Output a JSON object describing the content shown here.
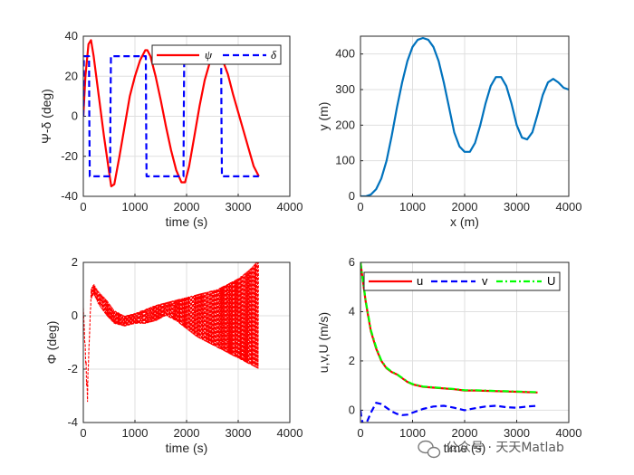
{
  "watermark": {
    "text": "公众号 · 天天Matlab",
    "icon": "wechat-icon"
  },
  "chart_data": [
    {
      "type": "line",
      "panel": "top-left",
      "xlabel": "time (s)",
      "ylabel": "Ψ-δ (deg)",
      "xlim": [
        0,
        4000
      ],
      "ylim": [
        -40,
        40
      ],
      "xticks": [
        "0",
        "1000",
        "2000",
        "3000",
        "4000"
      ],
      "yticks": [
        "40",
        "20",
        "0",
        "-20",
        "-40"
      ],
      "grid": true,
      "legend_position": "top-right",
      "series": [
        {
          "name": "ψ",
          "color": "#ff0000",
          "style": "solid",
          "x": [
            0,
            40,
            100,
            150,
            200,
            300,
            400,
            500,
            540,
            600,
            700,
            800,
            900,
            1000,
            1100,
            1200,
            1240,
            1300,
            1400,
            1500,
            1600,
            1700,
            1800,
            1900,
            1970,
            2050,
            2150,
            2250,
            2350,
            2450,
            2550,
            2650,
            2700,
            2800,
            2900,
            3000,
            3100,
            3200,
            3300,
            3400
          ],
          "y": [
            0,
            20,
            36,
            38,
            30,
            10,
            -10,
            -28,
            -35,
            -34,
            -20,
            -5,
            10,
            20,
            28,
            33,
            33,
            30,
            20,
            8,
            -5,
            -17,
            -27,
            -33,
            -33,
            -25,
            -10,
            5,
            18,
            27,
            31,
            30,
            28,
            21,
            11,
            2,
            -7,
            -16,
            -25,
            -30
          ]
        },
        {
          "name": "δ",
          "color": "#0000ff",
          "style": "dashed",
          "x": [
            0,
            5,
            10,
            20,
            110,
            115,
            125,
            520,
            525,
            535,
            1210,
            1215,
            1225,
            1940,
            1945,
            1955,
            2670,
            2675,
            2685,
            3400
          ],
          "y": [
            0,
            15,
            30,
            30,
            30,
            0,
            -30,
            -30,
            0,
            30,
            30,
            0,
            -30,
            -30,
            0,
            30,
            30,
            0,
            -30,
            -30
          ]
        }
      ]
    },
    {
      "type": "line",
      "panel": "top-right",
      "xlabel": "x (m)",
      "ylabel": "y (m)",
      "xlim": [
        0,
        4000
      ],
      "ylim": [
        0,
        450
      ],
      "xticks": [
        "0",
        "1000",
        "2000",
        "3000",
        "4000"
      ],
      "yticks": [
        "400",
        "300",
        "200",
        "100",
        "0"
      ],
      "grid": true,
      "series": [
        {
          "name": "",
          "color": "#0072bd",
          "style": "solid",
          "x": [
            0,
            100,
            200,
            300,
            400,
            500,
            600,
            700,
            800,
            900,
            1000,
            1100,
            1200,
            1300,
            1400,
            1500,
            1600,
            1700,
            1800,
            1900,
            2000,
            2100,
            2200,
            2300,
            2400,
            2500,
            2600,
            2700,
            2800,
            2900,
            3000,
            3100,
            3200,
            3300,
            3400,
            3500,
            3600,
            3700,
            3800,
            3900,
            4000
          ],
          "y": [
            0,
            0,
            5,
            20,
            50,
            100,
            170,
            250,
            320,
            380,
            420,
            440,
            445,
            440,
            420,
            380,
            320,
            250,
            180,
            140,
            125,
            125,
            150,
            200,
            260,
            310,
            335,
            335,
            310,
            260,
            200,
            165,
            160,
            180,
            230,
            285,
            320,
            330,
            320,
            305,
            300
          ]
        }
      ]
    },
    {
      "type": "line",
      "panel": "bottom-left",
      "xlabel": "time (s)",
      "ylabel": "Φ (deg)",
      "xlim": [
        0,
        4000
      ],
      "ylim": [
        -4,
        2
      ],
      "xticks": [
        "0",
        "1000",
        "2000",
        "3000",
        "4000"
      ],
      "yticks": [
        "2",
        "0",
        "-2",
        "-4"
      ],
      "grid": true,
      "series": [
        {
          "name": "",
          "color": "#ff0000",
          "style": "dashed",
          "x": [
            0,
            60,
            80,
            100,
            150,
            200,
            300,
            450,
            600,
            800,
            1000,
            1200,
            1400,
            1600,
            1800,
            2000,
            2200,
            2400,
            2600,
            2800,
            3000,
            3200,
            3400
          ],
          "y": [
            0.3,
            -2.5,
            -3.3,
            -1.8,
            1.0,
            1.2,
            0.9,
            0.6,
            0.2,
            0.0,
            0.1,
            0.25,
            0.4,
            0.5,
            0.6,
            0.7,
            0.8,
            0.9,
            1.0,
            1.2,
            1.4,
            1.7,
            2.1
          ]
        },
        {
          "name": "",
          "color": "#ff0000",
          "style": "dashed",
          "x": [
            0,
            60,
            80,
            100,
            150,
            200,
            300,
            450,
            600,
            800,
            1000,
            1200,
            1400,
            1600,
            1800,
            2000,
            2200,
            2400,
            2600,
            2800,
            3000,
            3200,
            3400
          ],
          "y": [
            0.3,
            -2.0,
            -2.8,
            -1.5,
            0.6,
            0.8,
            0.4,
            0.0,
            -0.3,
            -0.4,
            -0.3,
            -0.3,
            -0.2,
            0.0,
            -0.2,
            -0.5,
            -0.8,
            -1.0,
            -1.2,
            -1.4,
            -1.6,
            -1.8,
            -2.0
          ]
        }
      ]
    },
    {
      "type": "line",
      "panel": "bottom-right",
      "xlabel": "time (s)",
      "ylabel": "u,v,U (m/s)",
      "xlim": [
        0,
        4000
      ],
      "ylim": [
        -0.5,
        6
      ],
      "xticks": [
        "0",
        "1000",
        "2000",
        "3000",
        "4000"
      ],
      "yticks": [
        "6",
        "4",
        "2",
        "0"
      ],
      "grid": true,
      "legend_position": "top-right",
      "series": [
        {
          "name": "u",
          "color": "#ff0000",
          "style": "solid",
          "x": [
            0,
            50,
            100,
            150,
            200,
            300,
            400,
            500,
            600,
            700,
            800,
            900,
            1000,
            1200,
            1500,
            1800,
            2000,
            2200,
            2500,
            2800,
            3000,
            3400
          ],
          "y": [
            6.0,
            5.2,
            4.4,
            3.8,
            3.2,
            2.5,
            2.0,
            1.7,
            1.55,
            1.45,
            1.3,
            1.15,
            1.05,
            0.95,
            0.9,
            0.85,
            0.8,
            0.8,
            0.78,
            0.76,
            0.75,
            0.72
          ]
        },
        {
          "name": "v",
          "color": "#0000ff",
          "style": "dashed",
          "x": [
            0,
            20,
            40,
            80,
            120,
            200,
            300,
            400,
            500,
            600,
            700,
            800,
            900,
            1000,
            1200,
            1400,
            1600,
            1800,
            2000,
            2200,
            2400,
            2600,
            2800,
            3000,
            3200,
            3400
          ],
          "y": [
            0,
            -0.3,
            -0.5,
            -0.6,
            -0.5,
            -0.1,
            0.3,
            0.25,
            0.1,
            -0.05,
            -0.15,
            -0.2,
            -0.18,
            -0.1,
            0.05,
            0.15,
            0.18,
            0.1,
            0.0,
            0.08,
            0.15,
            0.18,
            0.12,
            0.1,
            0.15,
            0.18
          ]
        },
        {
          "name": "U",
          "color": "#00ff00",
          "style": "dashdot",
          "x": [
            0,
            50,
            100,
            150,
            200,
            300,
            400,
            500,
            600,
            700,
            800,
            900,
            1000,
            1200,
            1500,
            1800,
            2000,
            2200,
            2500,
            2800,
            3000,
            3400
          ],
          "y": [
            6.0,
            5.22,
            4.43,
            3.85,
            3.25,
            2.55,
            2.02,
            1.72,
            1.56,
            1.46,
            1.31,
            1.16,
            1.06,
            0.96,
            0.91,
            0.86,
            0.81,
            0.81,
            0.79,
            0.77,
            0.76,
            0.73
          ]
        }
      ]
    }
  ]
}
